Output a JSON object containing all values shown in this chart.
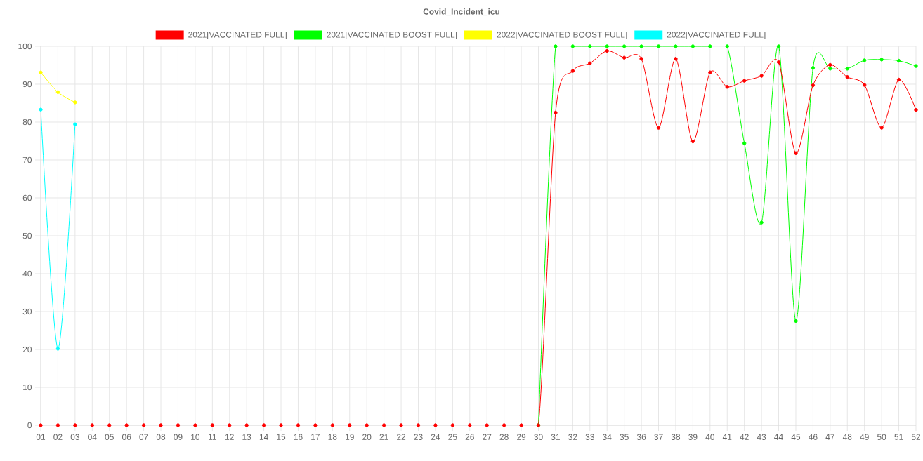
{
  "chart_data": {
    "type": "line",
    "title": "Covid_Incident_icu",
    "categories": [
      "01",
      "02",
      "03",
      "04",
      "05",
      "06",
      "07",
      "08",
      "09",
      "10",
      "11",
      "12",
      "13",
      "14",
      "15",
      "16",
      "17",
      "18",
      "19",
      "20",
      "21",
      "22",
      "23",
      "24",
      "25",
      "26",
      "27",
      "28",
      "29",
      "30",
      "31",
      "32",
      "33",
      "34",
      "35",
      "36",
      "37",
      "38",
      "39",
      "40",
      "41",
      "42",
      "43",
      "44",
      "45",
      "46",
      "47",
      "48",
      "49",
      "50",
      "51",
      "52"
    ],
    "series": [
      {
        "name": "2021[VACCINATED FULL]",
        "color": "#ff0000",
        "values": [
          0,
          0,
          0,
          0,
          0,
          0,
          0,
          0,
          0,
          0,
          0,
          0,
          0,
          0,
          0,
          0,
          0,
          0,
          0,
          0,
          0,
          0,
          0,
          0,
          0,
          0,
          0,
          0,
          0,
          0,
          82.5,
          93.5,
          95.5,
          98.8,
          97.0,
          96.7,
          78.5,
          96.7,
          74.9,
          93.1,
          89.3,
          90.9,
          92.2,
          95.8,
          71.8,
          89.7,
          95.1,
          91.9,
          89.8,
          78.5,
          91.2,
          83.2
        ]
      },
      {
        "name": "2021[VACCINATED BOOST FULL]",
        "color": "#00ff00",
        "values": [
          null,
          null,
          null,
          null,
          null,
          null,
          null,
          null,
          null,
          null,
          null,
          null,
          null,
          null,
          null,
          null,
          null,
          null,
          null,
          null,
          null,
          null,
          null,
          null,
          null,
          null,
          null,
          null,
          null,
          0,
          100,
          100,
          100,
          100,
          100,
          100,
          100,
          100,
          100,
          100,
          100,
          74.4,
          53.5,
          100,
          27.5,
          94.3,
          94.1,
          94.1,
          96.3,
          96.5,
          96.2,
          94.8
        ]
      },
      {
        "name": "2022[VACCINATED BOOST FULL]",
        "color": "#ffff00",
        "values": [
          93.1,
          87.9,
          85.2,
          null,
          null,
          null,
          null,
          null,
          null,
          null,
          null,
          null,
          null,
          null,
          null,
          null,
          null,
          null,
          null,
          null,
          null,
          null,
          null,
          null,
          null,
          null,
          null,
          null,
          null,
          null,
          null,
          null,
          null,
          null,
          null,
          null,
          null,
          null,
          null,
          null,
          null,
          null,
          null,
          null,
          null,
          null,
          null,
          null,
          null,
          null,
          null,
          null
        ]
      },
      {
        "name": "2022[VACCINATED FULL]",
        "color": "#00ffff",
        "values": [
          83.3,
          20.2,
          79.4,
          null,
          null,
          null,
          null,
          null,
          null,
          null,
          null,
          null,
          null,
          null,
          null,
          null,
          null,
          null,
          null,
          null,
          null,
          null,
          null,
          null,
          null,
          null,
          null,
          null,
          null,
          null,
          null,
          null,
          null,
          null,
          null,
          null,
          null,
          null,
          null,
          null,
          null,
          null,
          null,
          null,
          null,
          null,
          null,
          null,
          null,
          null,
          null,
          null
        ]
      }
    ],
    "ylim": [
      0,
      100
    ],
    "yticks": [
      0,
      10,
      20,
      30,
      40,
      50,
      60,
      70,
      80,
      90,
      100
    ],
    "grid": true,
    "legend": "top",
    "marker": "circle",
    "line_style": "solid"
  }
}
